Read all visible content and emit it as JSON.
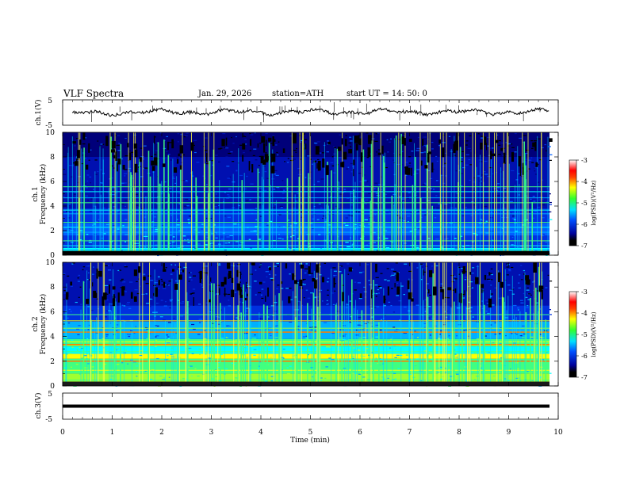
{
  "header": {
    "title": "VLF  Spectra",
    "date": "Jan. 29, 2026",
    "station": "station=ATH",
    "start_ut": "start  UT  =   14: 50: 0"
  },
  "chart_data": [
    {
      "type": "line",
      "ylabel": "ch.1(V)",
      "ylim": [
        -5,
        5
      ],
      "y_ticks": [
        "5",
        "-5"
      ],
      "xlim": [
        0,
        10
      ],
      "baseline": 0.2
    },
    {
      "type": "heatmap",
      "ylabel": "ch.1\nFrequency (kHz)",
      "ylim": [
        0,
        10
      ],
      "y_ticks": [
        "0",
        "2",
        "4",
        "6",
        "8",
        "10"
      ],
      "xlim": [
        0,
        10
      ],
      "colorbar": {
        "label": "log(PSD)(V²/Hz)",
        "range": [
          -7,
          -3
        ],
        "ticks": [
          "-3",
          "-4",
          "-5",
          "-6",
          "-7"
        ]
      }
    },
    {
      "type": "heatmap",
      "ylabel": "ch.2\nFrequency (kHz)",
      "ylim": [
        0,
        10
      ],
      "y_ticks": [
        "0",
        "2",
        "4",
        "6",
        "8",
        "10"
      ],
      "xlim": [
        0,
        10
      ],
      "colorbar": {
        "label": "log(PSD)(V²/Hz)",
        "range": [
          -7,
          -3
        ],
        "ticks": [
          "-3",
          "-4",
          "-5",
          "-6",
          "-7"
        ]
      }
    },
    {
      "type": "line",
      "ylabel": "ch.3(V)",
      "ylim": [
        -5,
        5
      ],
      "y_ticks": [
        "5",
        "-5"
      ],
      "xlim": [
        0,
        10
      ],
      "value": 0,
      "xlabel": "Time  (min)",
      "x_ticks": [
        "0",
        "1",
        "2",
        "3",
        "4",
        "5",
        "6",
        "7",
        "8",
        "9",
        "10"
      ]
    }
  ],
  "colors": {
    "frame": "#000000",
    "trace": "#000000"
  }
}
